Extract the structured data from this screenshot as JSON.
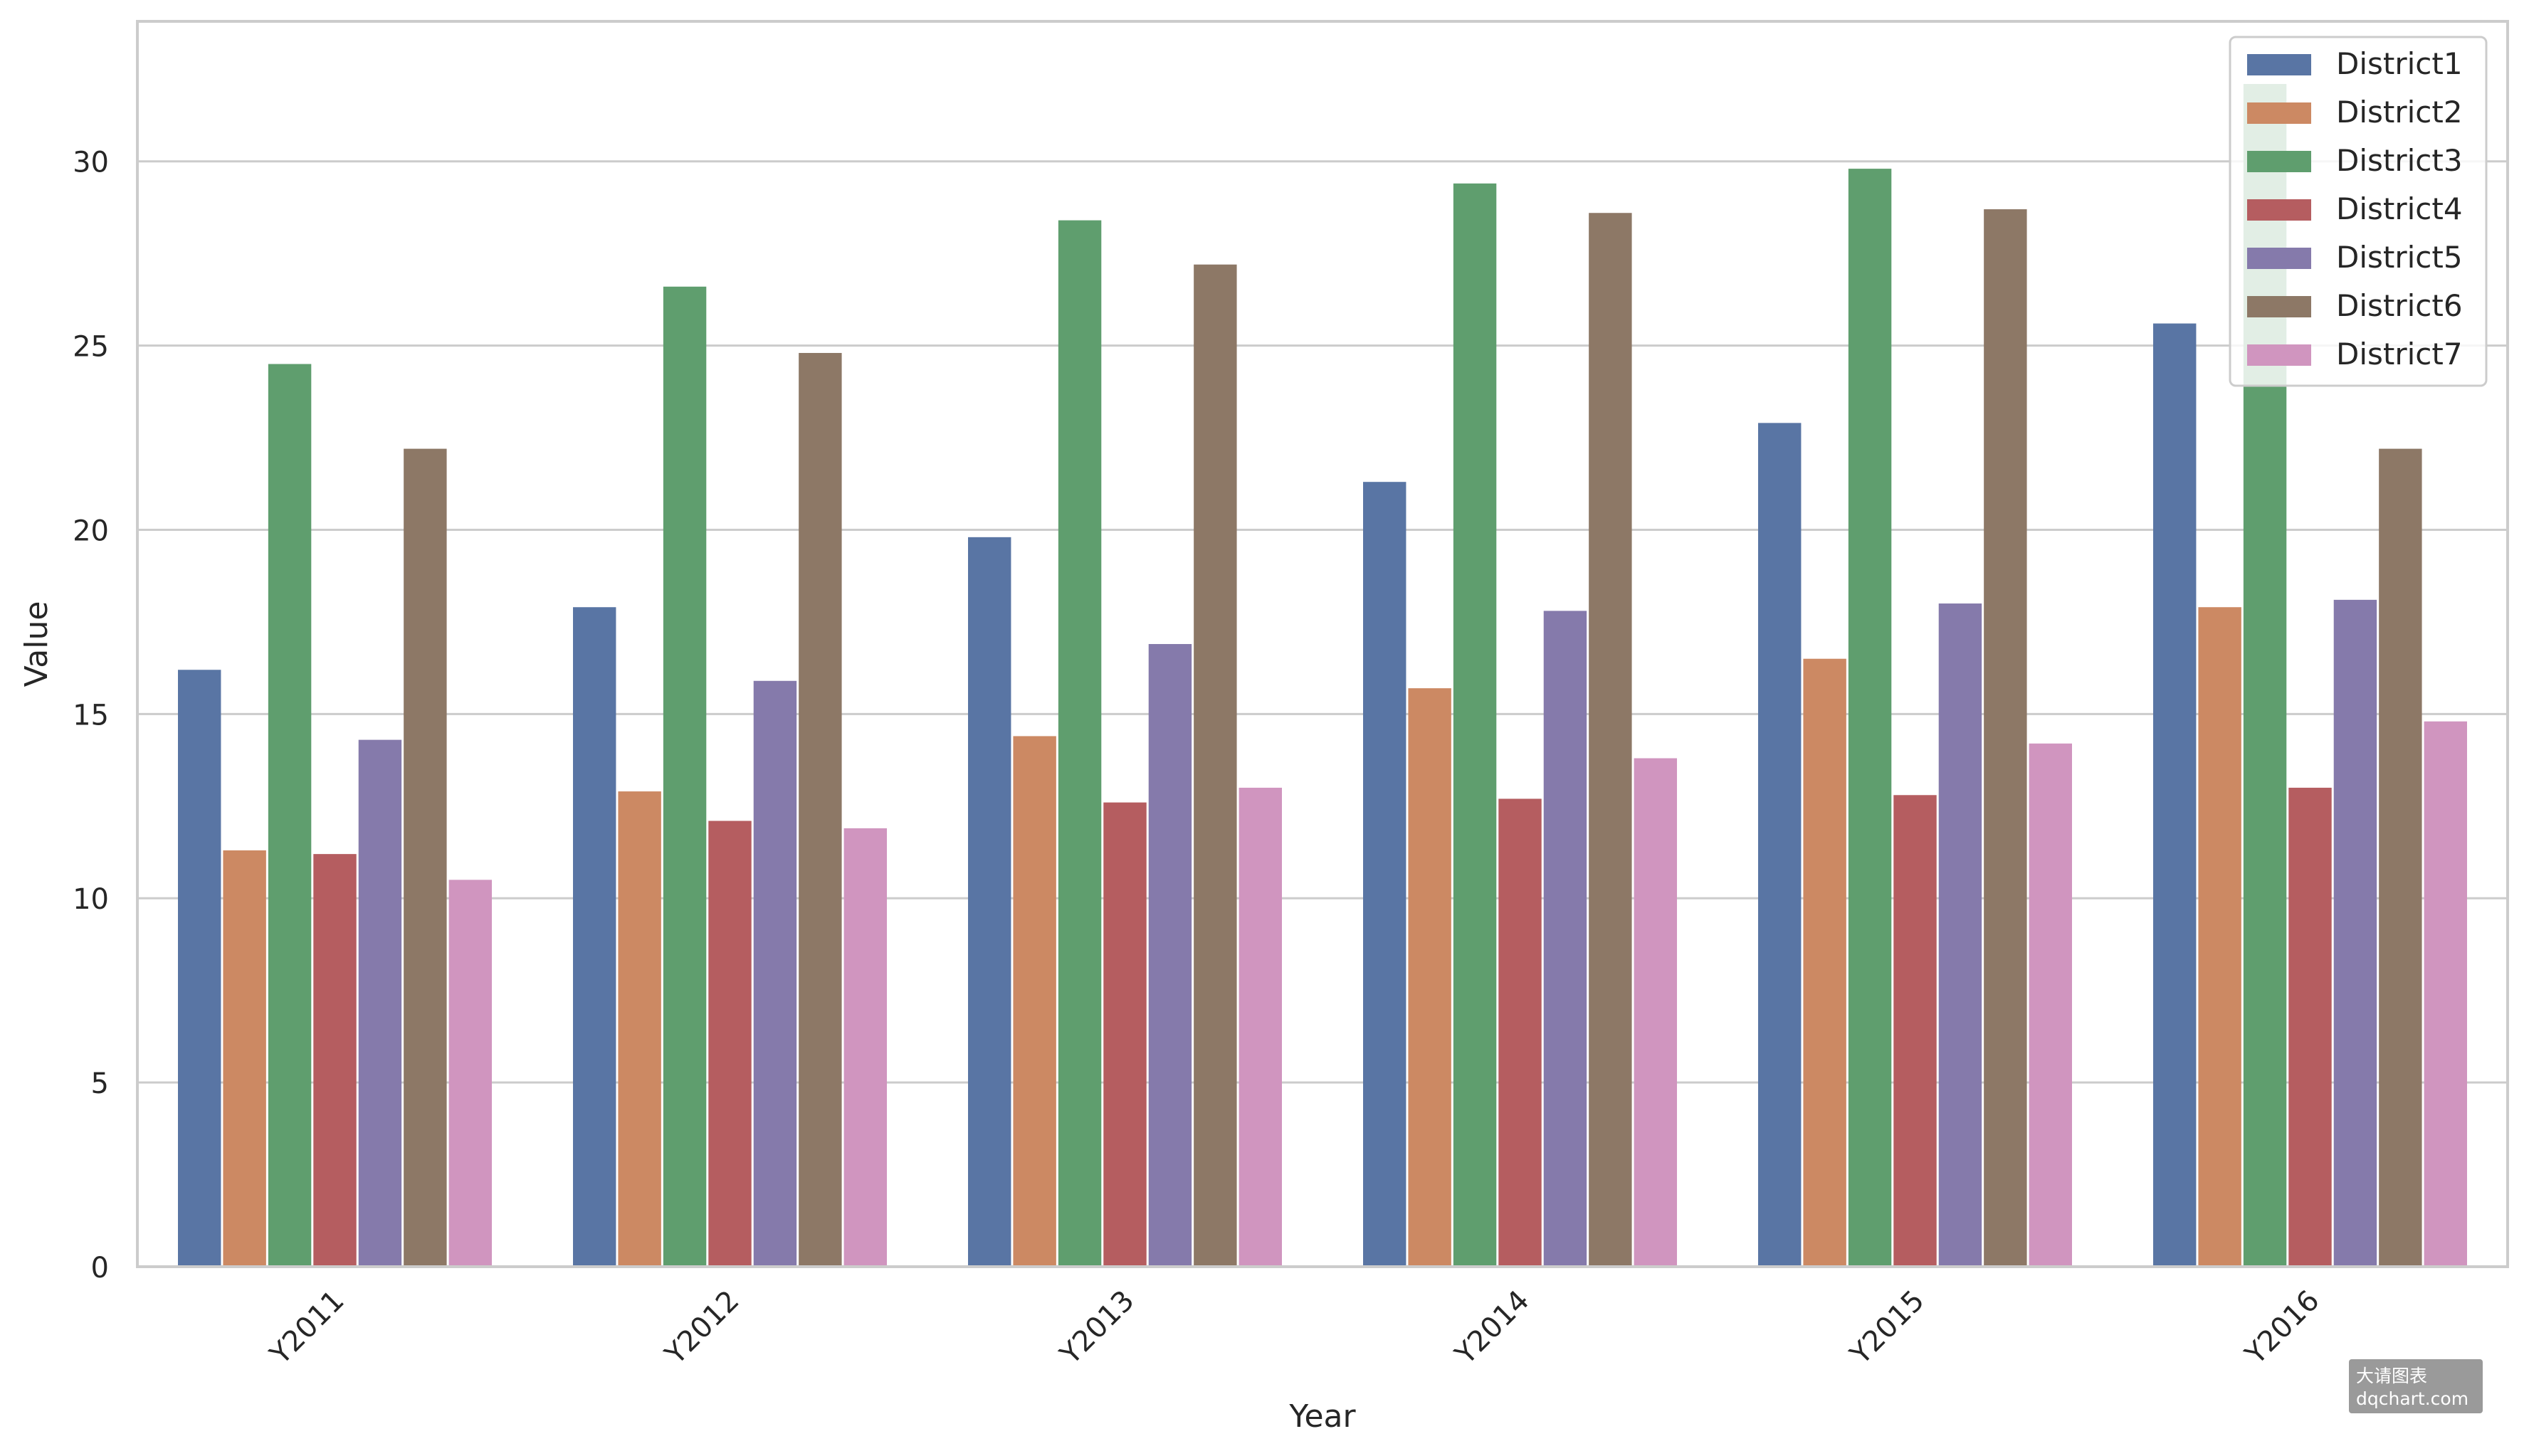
{
  "chart_data": {
    "type": "bar",
    "title": "",
    "xlabel": "Year",
    "ylabel": "Value",
    "ylim": [
      0,
      33.8
    ],
    "yticks": [
      0,
      5,
      10,
      15,
      20,
      25,
      30
    ],
    "grid": "horizontal",
    "legend_position": "top-right",
    "categories": [
      "Y2011",
      "Y2012",
      "Y2013",
      "Y2014",
      "Y2015",
      "Y2016"
    ],
    "series": [
      {
        "name": "District1",
        "color": "#5975a4",
        "values": [
          16.2,
          17.9,
          19.8,
          21.3,
          22.9,
          25.6
        ]
      },
      {
        "name": "District2",
        "color": "#cc8963",
        "values": [
          11.3,
          12.9,
          14.4,
          15.7,
          16.5,
          17.9
        ]
      },
      {
        "name": "District3",
        "color": "#5f9e6e",
        "values": [
          24.5,
          26.6,
          28.4,
          29.4,
          29.8,
          32.1
        ]
      },
      {
        "name": "District4",
        "color": "#b55d60",
        "values": [
          11.2,
          12.1,
          12.6,
          12.7,
          12.8,
          13.0
        ]
      },
      {
        "name": "District5",
        "color": "#857aab",
        "values": [
          14.3,
          15.9,
          16.9,
          17.8,
          18.0,
          18.1
        ]
      },
      {
        "name": "District6",
        "color": "#8d7866",
        "values": [
          22.2,
          24.8,
          27.2,
          28.6,
          28.7,
          22.2
        ]
      },
      {
        "name": "District7",
        "color": "#d095bf",
        "values": [
          10.5,
          11.9,
          13.0,
          13.8,
          14.2,
          14.8
        ]
      }
    ]
  },
  "watermark": {
    "line1": "大请图表",
    "line2": "dqchart.com"
  }
}
